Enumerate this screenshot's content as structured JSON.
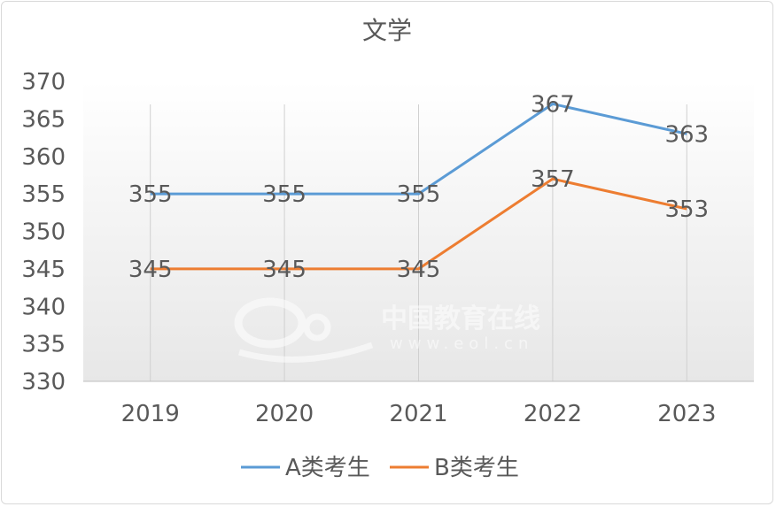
{
  "chart_data": {
    "type": "line",
    "title": "文学",
    "categories": [
      "2019",
      "2020",
      "2021",
      "2022",
      "2023"
    ],
    "series": [
      {
        "name": "A类考生",
        "color": "#5b9bd5",
        "values": [
          355,
          355,
          355,
          367,
          363
        ]
      },
      {
        "name": "B类考生",
        "color": "#ed7d31",
        "values": [
          345,
          345,
          345,
          357,
          353
        ]
      }
    ],
    "ylim": [
      330,
      370
    ],
    "yticks": [
      "330",
      "335",
      "340",
      "345",
      "350",
      "355",
      "360",
      "365",
      "370"
    ],
    "grid": "vertical",
    "legend": "bottom"
  },
  "watermark": {
    "logo": "eol",
    "cn": "中国教育在线",
    "url": "www.eol.cn"
  }
}
